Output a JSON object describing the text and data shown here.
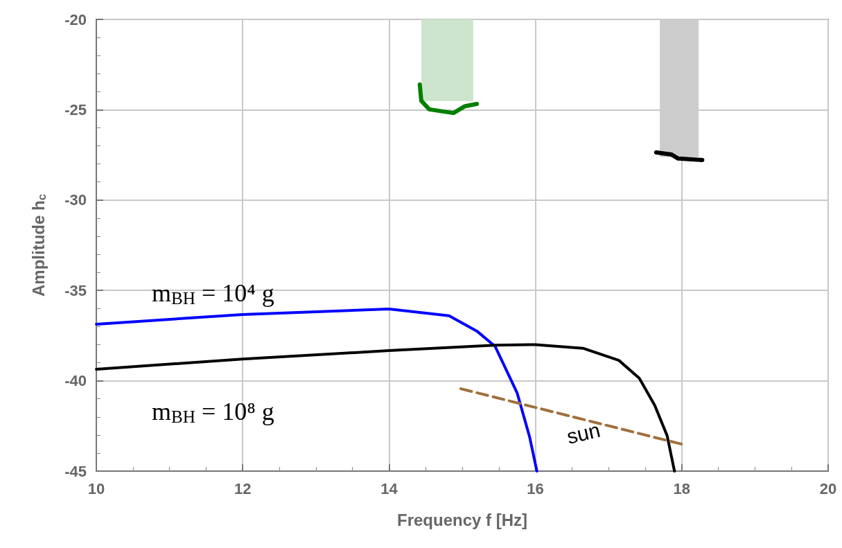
{
  "chart_data": {
    "type": "line",
    "xlabel": "Frequency f [Hz]",
    "ylabel": "Amplitude h$_{c}$",
    "xlim": [
      10,
      20
    ],
    "xticks": [
      10,
      12,
      14,
      16,
      18,
      20
    ],
    "ylim": [
      -45,
      -20
    ],
    "yticks": [
      -45,
      -40,
      -35,
      -30,
      -25,
      -20
    ],
    "grid": true,
    "marker": "none",
    "series": [
      {
        "type": "area",
        "color": "#cce5cc",
        "x": [
          14.44,
          15.15
        ],
        "values": [
          -24.5,
          -24.5
        ]
      },
      {
        "type": "area",
        "color": "#cccccc",
        "x": [
          17.7,
          18.23
        ],
        "values": [
          -27.6,
          -27.6
        ]
      },
      {
        "name": "m$_{BH}$ = 10⁴ g",
        "color": "#0000ff",
        "x": [
          10,
          12,
          14,
          14.82,
          15.2,
          15.45,
          15.75,
          15.92,
          16.02
        ],
        "values": [
          -36.87,
          -36.33,
          -36.03,
          -36.4,
          -37.25,
          -38.1,
          -40.67,
          -43.1,
          -45
        ]
      },
      {
        "name": "m$_{BH}$ = 10⁸ g",
        "color": "#000000",
        "x": [
          10,
          12,
          14,
          15.45,
          16,
          16.65,
          17.14,
          17.42,
          17.63,
          17.8,
          17.9
        ],
        "values": [
          -39.36,
          -38.8,
          -38.33,
          -38.03,
          -38.0,
          -38.2,
          -38.87,
          -39.86,
          -41.36,
          -43.04,
          -45
        ]
      },
      {
        "name": "sun",
        "color": "#a0703a",
        "line_style": "dashed",
        "x": [
          14.98,
          18.03
        ],
        "values": [
          -40.44,
          -43.54
        ]
      },
      {
        "color": "#008000",
        "x": [
          14.42,
          14.44,
          14.55,
          14.88,
          15.04,
          15.2
        ],
        "values": [
          -23.6,
          -24.5,
          -24.98,
          -25.18,
          -24.8,
          -24.68
        ]
      },
      {
        "color": "#000000",
        "x": [
          17.65,
          17.86,
          17.95,
          18.28
        ],
        "values": [
          -27.36,
          -27.48,
          -27.7,
          -27.78
        ]
      }
    ]
  }
}
